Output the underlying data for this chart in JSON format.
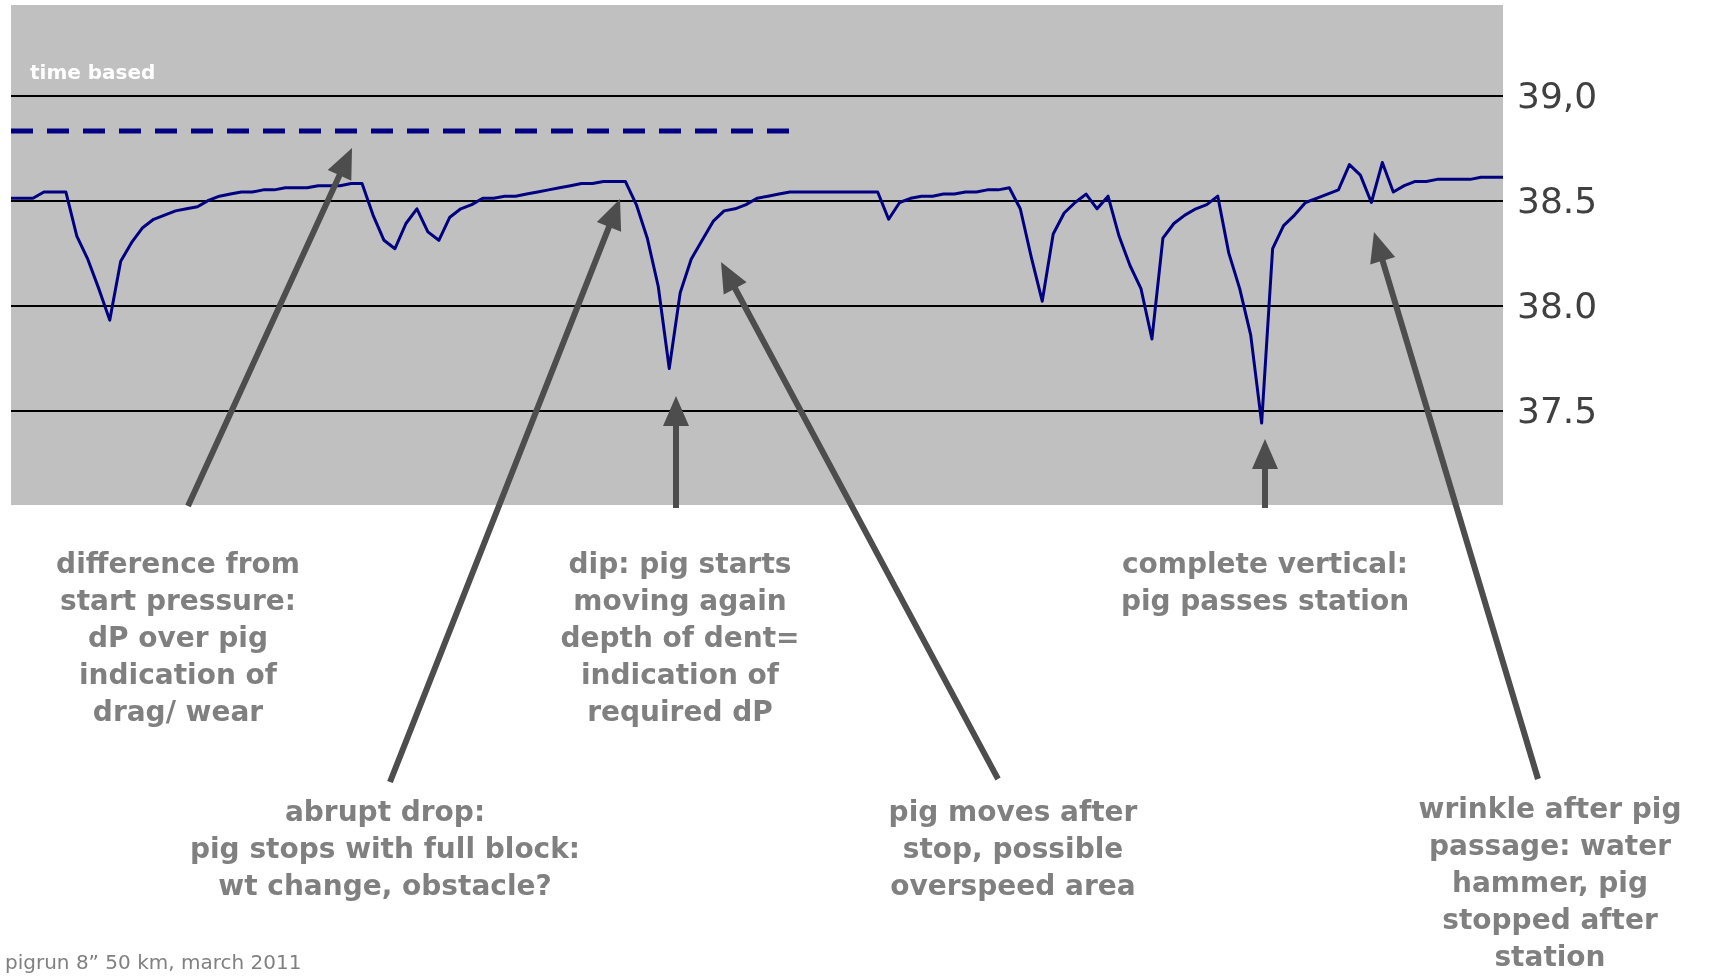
{
  "chart_data": {
    "type": "line",
    "categories": [
      null,
      null,
      null,
      null,
      null,
      null,
      null,
      null,
      null,
      null,
      null,
      null,
      null,
      null,
      null,
      null,
      null,
      null,
      null,
      null,
      null,
      null,
      null,
      null,
      null,
      null,
      null,
      null,
      null,
      null,
      null,
      null,
      null,
      null,
      null,
      null,
      null,
      null,
      null,
      null,
      null,
      null,
      null,
      null,
      null,
      null,
      null,
      null,
      null,
      null,
      null,
      null,
      null,
      null,
      null,
      null,
      null,
      null,
      null,
      null,
      null,
      null,
      null,
      null,
      null,
      null,
      null,
      null,
      null,
      null,
      null,
      null,
      null,
      null,
      null,
      null,
      null,
      null,
      null,
      null,
      null,
      null,
      null,
      null,
      null,
      null,
      null,
      null,
      null,
      null,
      null,
      null,
      null,
      null,
      null,
      null,
      null,
      null,
      null,
      null,
      null,
      null,
      null,
      null,
      null,
      null,
      null,
      null,
      null,
      null,
      null,
      null,
      null,
      null,
      null,
      null,
      null,
      null,
      null,
      null,
      null,
      null,
      null,
      null,
      null,
      null,
      null,
      null,
      null,
      null,
      null,
      null,
      null,
      null,
      null,
      null,
      null
    ],
    "series": [
      {
        "color": "#000080",
        "line_style": "solid",
        "values": [
          38.51,
          38.51,
          38.51,
          38.54,
          38.54,
          38.54,
          38.33,
          38.22,
          38.08,
          37.93,
          38.21,
          38.3,
          38.37,
          38.41,
          38.43,
          38.45,
          38.46,
          38.47,
          38.5,
          38.52,
          38.53,
          38.54,
          38.54,
          38.55,
          38.55,
          38.56,
          38.56,
          38.56,
          38.57,
          38.57,
          38.57,
          38.58,
          38.58,
          38.43,
          38.31,
          38.27,
          38.39,
          38.46,
          38.35,
          38.31,
          38.42,
          38.46,
          38.48,
          38.51,
          38.51,
          38.52,
          38.52,
          38.53,
          38.54,
          38.55,
          38.56,
          38.57,
          38.58,
          38.58,
          38.59,
          38.59,
          38.59,
          38.48,
          38.32,
          38.09,
          37.7,
          38.06,
          38.22,
          38.31,
          38.4,
          38.45,
          38.46,
          38.48,
          38.51,
          38.52,
          38.53,
          38.54,
          38.54,
          38.54,
          38.54,
          38.54,
          38.54,
          38.54,
          38.54,
          38.54,
          38.41,
          38.49,
          38.51,
          38.52,
          38.52,
          38.53,
          38.53,
          38.54,
          38.54,
          38.55,
          38.55,
          38.56,
          38.46,
          38.23,
          38.02,
          38.34,
          38.44,
          38.49,
          38.53,
          38.46,
          38.52,
          38.33,
          38.19,
          38.08,
          37.84,
          38.32,
          38.39,
          38.43,
          38.46,
          38.48,
          38.52,
          38.25,
          38.08,
          37.86,
          37.44,
          38.27,
          38.38,
          38.43,
          38.49,
          38.51,
          38.53,
          38.55,
          38.67,
          38.62,
          38.49,
          38.68,
          38.54,
          38.57,
          38.59,
          38.59,
          38.6,
          38.6,
          38.6,
          38.6,
          38.61,
          38.61,
          38.61
        ]
      },
      {
        "color": "#000080",
        "line_style": "dashed",
        "values": [
          38.83,
          38.83,
          38.83,
          38.83,
          38.83,
          38.83,
          38.83,
          38.83,
          38.83,
          38.83,
          38.83,
          38.83,
          38.83,
          38.83,
          38.83,
          38.83,
          38.83,
          38.83,
          38.83,
          38.83,
          38.83,
          38.83,
          38.83,
          38.83,
          38.83,
          38.83,
          38.83,
          38.83,
          38.83,
          38.83,
          38.83,
          38.83,
          38.83,
          38.83,
          38.83,
          38.83,
          38.83,
          38.83,
          38.83,
          38.83,
          38.83,
          38.83,
          38.83,
          38.83,
          38.83,
          38.83,
          38.83,
          38.83,
          38.83,
          38.83,
          38.83,
          38.83,
          38.83,
          38.83,
          38.83,
          38.83,
          38.83,
          38.83,
          38.83,
          38.83,
          38.83,
          38.83,
          38.83,
          38.83,
          38.83,
          38.83,
          38.83,
          38.83,
          38.83,
          38.83,
          38.83,
          38.83,
          null,
          null,
          null,
          null,
          null,
          null,
          null,
          null,
          null,
          null,
          null,
          null,
          null,
          null,
          null,
          null,
          null,
          null,
          null,
          null,
          null,
          null,
          null,
          null,
          null,
          null,
          null,
          null,
          null,
          null,
          null,
          null,
          null,
          null,
          null,
          null,
          null,
          null,
          null,
          null,
          null,
          null,
          null,
          null,
          null,
          null,
          null,
          null,
          null,
          null,
          null,
          null,
          null,
          null,
          null,
          null,
          null,
          null,
          null,
          null,
          null,
          null,
          null,
          null,
          null
        ]
      }
    ],
    "ylim": [
      37.05,
      39.43
    ],
    "yticks": [
      37.5,
      {
        "value": 38,
        "label": "38.0"
      },
      38.5,
      {
        "value": 39,
        "label": "39,0"
      }
    ],
    "grid": "y",
    "tick_labels": "y",
    "marker": "none",
    "annotations": [
      "time based",
      "difference from\nstart pressure:\ndP over pig\nindication of\ndrag/ wear",
      "abrupt drop:\npig stops with full block:\nwt change, obstacle?",
      "dip: pig starts\nmoving again\ndepth of dent=\nindication of\nrequired dP",
      "pig moves after\nstop, possible\noverspeed area",
      "complete vertical:\npig passes station",
      "wrinkle after pig\npassage: water\nhammer, pig\nstopped after\nstation",
      "pigrun 8” 50 km, march 2011"
    ]
  }
}
